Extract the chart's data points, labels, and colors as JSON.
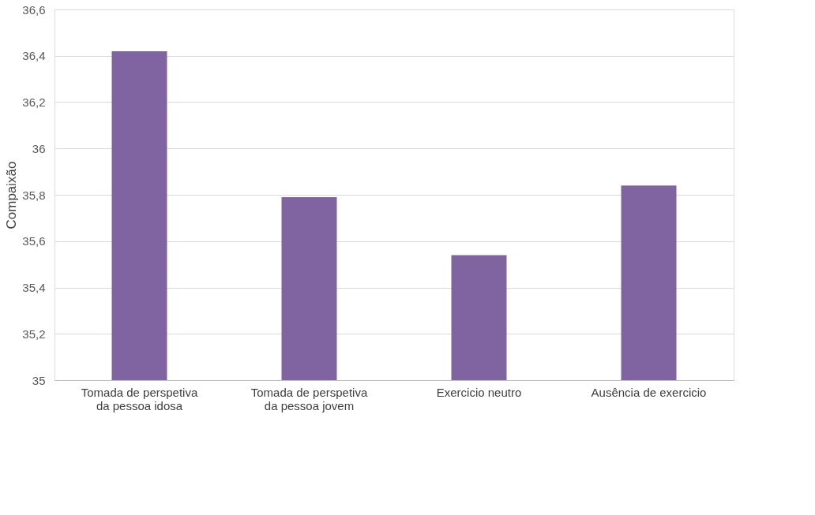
{
  "chart_data": {
    "type": "bar",
    "ylabel": "Compaixão",
    "categories": [
      "Tomada de perspetiva da pessoa idosa",
      "Tomada de perspetiva da pessoa jovem",
      "Exercicio neutro",
      "Ausência de exercicio"
    ],
    "values": [
      36.42,
      35.79,
      35.54,
      35.84
    ],
    "color": "#8064a2",
    "ylim": [
      35,
      36.6
    ],
    "yticks": [
      {
        "value": 35,
        "label": "35"
      },
      {
        "value": 35.2,
        "label": "35,2"
      },
      {
        "value": 35.4,
        "label": "35,4"
      },
      {
        "value": 35.6,
        "label": "35,6"
      },
      {
        "value": 35.8,
        "label": "35,8"
      },
      {
        "value": 36,
        "label": "36"
      },
      {
        "value": 36.2,
        "label": "36,2"
      },
      {
        "value": 36.4,
        "label": "36,4"
      },
      {
        "value": 36.6,
        "label": "36,6"
      }
    ],
    "grid": "y"
  }
}
